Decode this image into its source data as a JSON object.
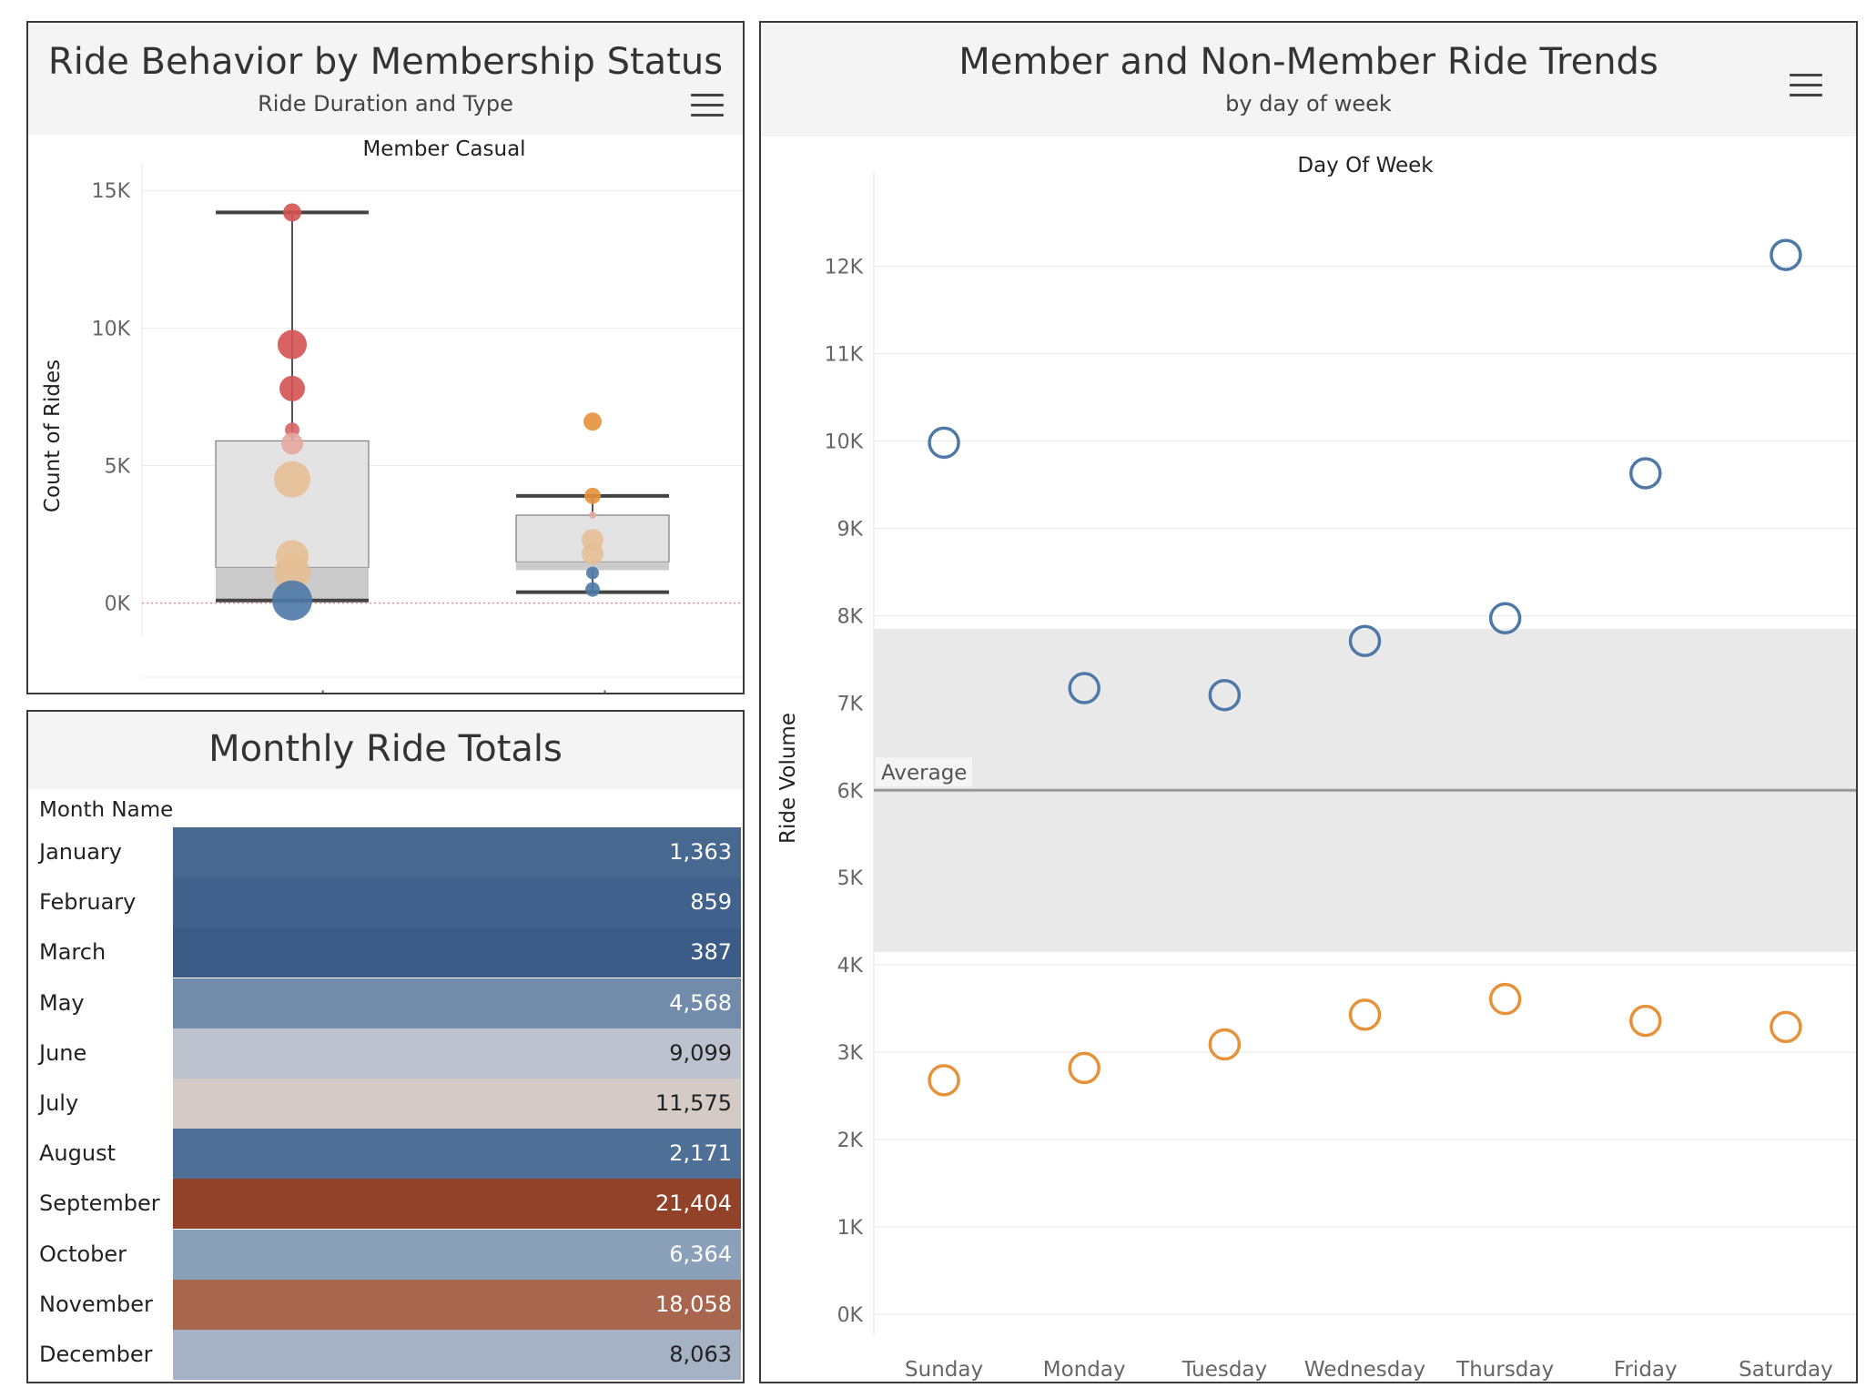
{
  "colors": {
    "member_series": "#4e79a7",
    "casual_series": "#e6923b",
    "band": "#e9e9e9",
    "average_line": "#999999"
  },
  "box_panel": {
    "title": "Ride Behavior by Membership Status",
    "subtitle": "Ride Duration and Type",
    "header_label": "Member Casual",
    "y_axis_title": "Count of Rides",
    "menu_icon": "hamburger-menu-icon"
  },
  "monthly_panel": {
    "title": "Monthly Ride Totals",
    "column_header": "Month Name",
    "rows": [
      {
        "month": "January",
        "value": "1,363",
        "color": "#48698f",
        "text_color": "#ffffff"
      },
      {
        "month": "February",
        "value": "859",
        "color": "#40628c",
        "text_color": "#ffffff"
      },
      {
        "month": "March",
        "value": "387",
        "color": "#3a5c87",
        "text_color": "#ffffff"
      },
      {
        "month": "May",
        "value": "4,568",
        "color": "#718caa",
        "text_color": "#ffffff"
      },
      {
        "month": "June",
        "value": "9,099",
        "color": "#bcc3cf",
        "text_color": "#222222"
      },
      {
        "month": "July",
        "value": "11,575",
        "color": "#d5cbc6",
        "text_color": "#222222"
      },
      {
        "month": "August",
        "value": "2,171",
        "color": "#4e6f96",
        "text_color": "#ffffff"
      },
      {
        "month": "September",
        "value": "21,404",
        "color": "#93422a",
        "text_color": "#ffffff"
      },
      {
        "month": "October",
        "value": "6,364",
        "color": "#8ba0b9",
        "text_color": "#ffffff"
      },
      {
        "month": "November",
        "value": "18,058",
        "color": "#a8664f",
        "text_color": "#ffffff"
      },
      {
        "month": "December",
        "value": "8,063",
        "color": "#a4b2c3",
        "text_color": "#222222"
      }
    ]
  },
  "trend_panel": {
    "title": "Member and Non-Member Ride Trends",
    "subtitle": "by day of week",
    "menu_icon": "hamburger-menu-icon"
  },
  "chart_data": [
    {
      "type": "box",
      "title": "Ride Behavior by Membership Status",
      "subtitle": "Ride Duration and Type",
      "header": "Member Casual",
      "ylabel": "Count of Rides",
      "ylim": [
        -1200,
        16000
      ],
      "y_ticks": [
        0,
        5000,
        10000,
        15000
      ],
      "y_tick_labels": [
        "0K",
        "5K",
        "10K",
        "15K"
      ],
      "categories": [
        "casual",
        "member"
      ],
      "boxes": [
        {
          "category": "casual",
          "whisker_low": 100,
          "q1": 100,
          "median": 1300,
          "q3": 5900,
          "whisker_high": 14200
        },
        {
          "category": "member",
          "whisker_low": 400,
          "q1": 1200,
          "median": 1500,
          "q3": 3200,
          "whisker_high": 3900
        }
      ],
      "points": [
        {
          "category": "casual",
          "y": 14200,
          "size": 10,
          "color": "#d45252"
        },
        {
          "category": "casual",
          "y": 9400,
          "size": 16,
          "color": "#d45252"
        },
        {
          "category": "casual",
          "y": 7800,
          "size": 14,
          "color": "#d45252"
        },
        {
          "category": "casual",
          "y": 6300,
          "size": 8,
          "color": "#d86565"
        },
        {
          "category": "casual",
          "y": 5800,
          "size": 12,
          "color": "#e2a8a0"
        },
        {
          "category": "casual",
          "y": 4500,
          "size": 20,
          "color": "#e6bf93"
        },
        {
          "category": "casual",
          "y": 1700,
          "size": 18,
          "color": "#e6bf93"
        },
        {
          "category": "casual",
          "y": 1100,
          "size": 20,
          "color": "#e6bf93"
        },
        {
          "category": "casual",
          "y": 100,
          "size": 22,
          "color": "#4e79a7"
        },
        {
          "category": "member",
          "y": 6600,
          "size": 10,
          "color": "#e6923b"
        },
        {
          "category": "member",
          "y": 3900,
          "size": 9,
          "color": "#e6923b"
        },
        {
          "category": "member",
          "y": 3200,
          "size": 4,
          "color": "#e2a8a0"
        },
        {
          "category": "member",
          "y": 2300,
          "size": 12,
          "color": "#e6bf93"
        },
        {
          "category": "member",
          "y": 1800,
          "size": 12,
          "color": "#e6bf93"
        },
        {
          "category": "member",
          "y": 1100,
          "size": 7,
          "color": "#4e79a7"
        },
        {
          "category": "member",
          "y": 500,
          "size": 8,
          "color": "#4e79a7"
        }
      ]
    },
    {
      "type": "table",
      "title": "Monthly Ride Totals",
      "column": "Month Name",
      "categories": [
        "January",
        "February",
        "March",
        "May",
        "June",
        "July",
        "August",
        "September",
        "October",
        "November",
        "December"
      ],
      "values": [
        1363,
        859,
        387,
        4568,
        9099,
        11575,
        2171,
        21404,
        6364,
        18058,
        8063
      ]
    },
    {
      "type": "scatter",
      "title": "Member and Non-Member Ride Trends",
      "subtitle": "by day of week",
      "header": "Day Of Week",
      "ylabel": "Ride Volume",
      "ylim": [
        -250,
        13100
      ],
      "y_ticks": [
        0,
        1000,
        2000,
        3000,
        4000,
        5000,
        6000,
        7000,
        8000,
        9000,
        10000,
        11000,
        12000
      ],
      "y_tick_labels": [
        "0K",
        "1K",
        "2K",
        "3K",
        "4K",
        "5K",
        "6K",
        "7K",
        "8K",
        "9K",
        "10K",
        "11K",
        "12K"
      ],
      "categories": [
        "Sunday",
        "Monday",
        "Tuesday",
        "Wednesday",
        "Thursday",
        "Friday",
        "Saturday"
      ],
      "series": [
        {
          "color": "#4e79a7",
          "values": [
            9980,
            7170,
            7090,
            7710,
            7970,
            9630,
            12130
          ]
        },
        {
          "color": "#e6923b",
          "values": [
            2680,
            2820,
            3090,
            3430,
            3610,
            3360,
            3290
          ]
        }
      ],
      "reference_line": {
        "label": "Average",
        "value": 6000
      },
      "reference_band": [
        4150,
        7850
      ],
      "grid": true
    }
  ]
}
